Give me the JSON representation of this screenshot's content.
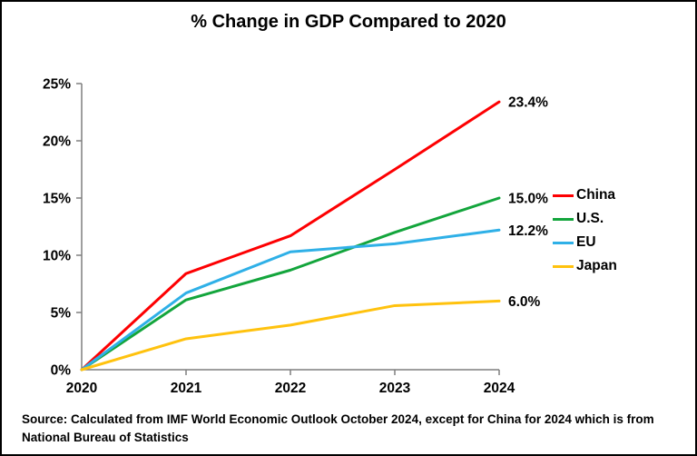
{
  "title": "% Change in GDP Compared to 2020",
  "source": {
    "line1": "Source:  Calculated from IMF World Economic Outlook October 2024, except for China for 2024 which is from",
    "line2": "National Bureau of Statistics"
  },
  "chart_data": {
    "type": "line",
    "title": "% Change in GDP Compared to 2020",
    "x": [
      2020,
      2021,
      2022,
      2023,
      2024
    ],
    "x_tick_labels": [
      "2020",
      "2021",
      "2022",
      "2023",
      "2024"
    ],
    "y_tick_labels": [
      "0%",
      "5%",
      "10%",
      "15%",
      "20%",
      "25%"
    ],
    "ylim": [
      0,
      25
    ],
    "y_tick_step": 5,
    "grid": false,
    "legend_position": "right-of-plot",
    "axis_color": "#7f7f7f",
    "text_color": "#000000",
    "series": [
      {
        "name": "China",
        "color": "#fd0002",
        "values": [
          0,
          8.4,
          11.7,
          17.5,
          23.4
        ],
        "end_label": "23.4%"
      },
      {
        "name": "U.S.",
        "color": "#13a53c",
        "values": [
          0,
          6.1,
          8.7,
          12.0,
          15.0
        ],
        "end_label": "15.0%"
      },
      {
        "name": "EU",
        "color": "#2fb0e7",
        "values": [
          0,
          6.7,
          10.3,
          11.0,
          12.2
        ],
        "end_label": "12.2%"
      },
      {
        "name": "Japan",
        "color": "#ffc20e",
        "values": [
          0,
          2.7,
          3.9,
          5.6,
          6.0
        ],
        "end_label": "6.0%"
      }
    ]
  }
}
